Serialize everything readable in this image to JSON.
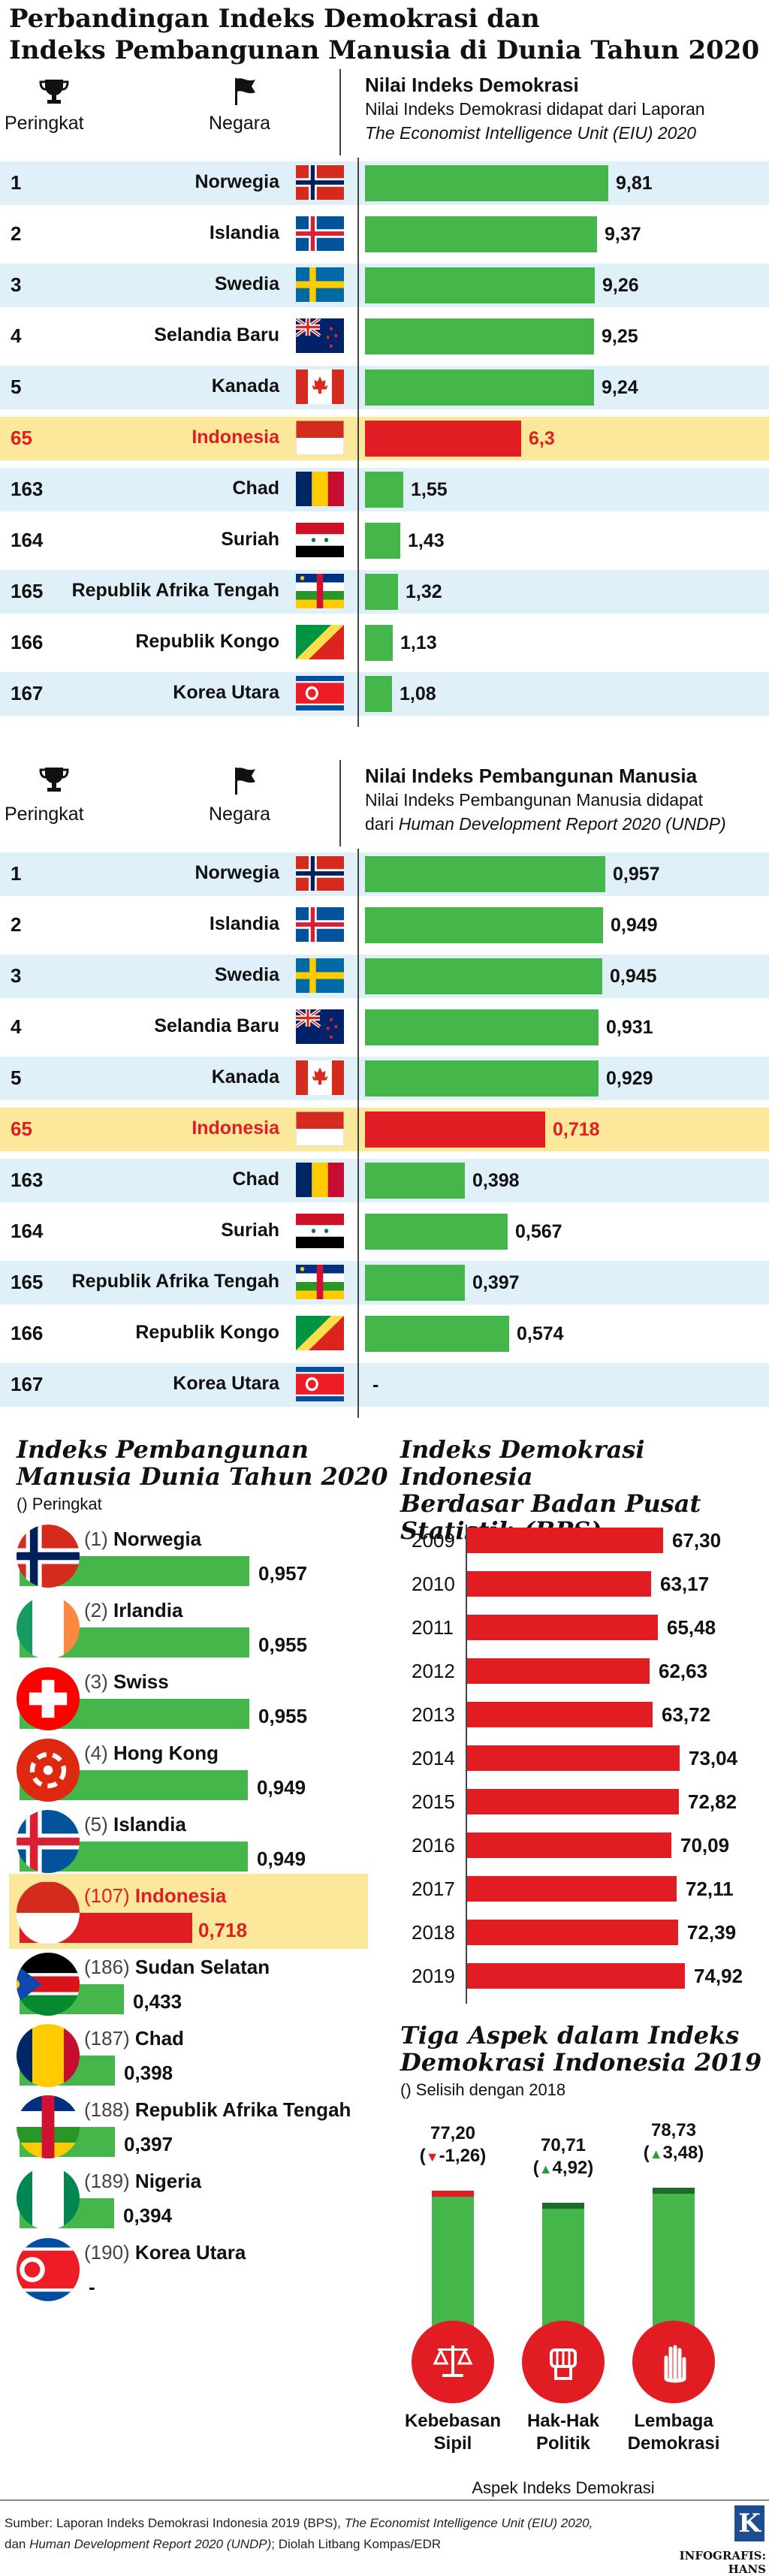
{
  "title_line1": "Perbandingan Indeks Demokrasi dan",
  "title_line2": "Indeks Pembangunan Manusia di Dunia Tahun 2020",
  "col_rank": "Peringkat",
  "col_country": "Negara",
  "democracy": {
    "header_title": "Nilai Indeks Demokrasi",
    "header_sub1": "Nilai Indeks Demokrasi didapat dari Laporan",
    "header_sub2": "The Economist Intelligence Unit (EIU) 2020",
    "rows": [
      {
        "rank": "1",
        "country": "Norwegia",
        "label": "9,81",
        "value": 9.81,
        "flag": "norway"
      },
      {
        "rank": "2",
        "country": "Islandia",
        "label": "9,37",
        "value": 9.37,
        "flag": "iceland"
      },
      {
        "rank": "3",
        "country": "Swedia",
        "label": "9,26",
        "value": 9.26,
        "flag": "sweden"
      },
      {
        "rank": "4",
        "country": "Selandia Baru",
        "label": "9,25",
        "value": 9.25,
        "flag": "newzealand"
      },
      {
        "rank": "5",
        "country": "Kanada",
        "label": "9,24",
        "value": 9.24,
        "flag": "canada"
      },
      {
        "rank": "65",
        "country": "Indonesia",
        "label": "6,3",
        "value": 6.3,
        "flag": "indonesia",
        "highlight": true
      },
      {
        "rank": "163",
        "country": "Chad",
        "label": "1,55",
        "value": 1.55,
        "flag": "chad"
      },
      {
        "rank": "164",
        "country": "Suriah",
        "label": "1,43",
        "value": 1.43,
        "flag": "syria"
      },
      {
        "rank": "165",
        "country": "Republik Afrika Tengah",
        "label": "1,32",
        "value": 1.32,
        "flag": "car"
      },
      {
        "rank": "166",
        "country": "Republik Kongo",
        "label": "1,13",
        "value": 1.13,
        "flag": "congo"
      },
      {
        "rank": "167",
        "country": "Korea Utara",
        "label": "1,08",
        "value": 1.08,
        "flag": "northkorea"
      }
    ]
  },
  "hdi": {
    "header_title": "Nilai Indeks Pembangunan Manusia",
    "header_sub1": "Nilai Indeks Pembangunan Manusia didapat",
    "header_sub2_prefix": "dari ",
    "header_sub2_italic": "Human Development Report 2020 (UNDP)",
    "rows": [
      {
        "rank": "1",
        "country": "Norwegia",
        "label": "0,957",
        "value": 0.957,
        "flag": "norway"
      },
      {
        "rank": "2",
        "country": "Islandia",
        "label": "0,949",
        "value": 0.949,
        "flag": "iceland"
      },
      {
        "rank": "3",
        "country": "Swedia",
        "label": "0,945",
        "value": 0.945,
        "flag": "sweden"
      },
      {
        "rank": "4",
        "country": "Selandia Baru",
        "label": "0,931",
        "value": 0.931,
        "flag": "newzealand"
      },
      {
        "rank": "5",
        "country": "Kanada",
        "label": "0,929",
        "value": 0.929,
        "flag": "canada"
      },
      {
        "rank": "65",
        "country": "Indonesia",
        "label": "0,718",
        "value": 0.718,
        "flag": "indonesia",
        "highlight": true
      },
      {
        "rank": "163",
        "country": "Chad",
        "label": "0,398",
        "value": 0.398,
        "flag": "chad"
      },
      {
        "rank": "164",
        "country": "Suriah",
        "label": "0,567",
        "value": 0.567,
        "flag": "syria"
      },
      {
        "rank": "165",
        "country": "Republik Afrika Tengah",
        "label": "0,397",
        "value": 0.397,
        "flag": "car"
      },
      {
        "rank": "166",
        "country": "Republik Kongo",
        "label": "0,574",
        "value": 0.574,
        "flag": "congo"
      },
      {
        "rank": "167",
        "country": "Korea Utara",
        "label": "-",
        "value": null,
        "flag": "northkorea"
      }
    ]
  },
  "hdi2020": {
    "title1": "Indeks Pembangunan",
    "title2": "Manusia Dunia Tahun 2020",
    "note": "() Peringkat",
    "rows": [
      {
        "rank": "(1)",
        "country": "Norwegia",
        "label": "0,957",
        "value": 0.957,
        "flag": "norway"
      },
      {
        "rank": "(2)",
        "country": "Irlandia",
        "label": "0,955",
        "value": 0.955,
        "flag": "ireland"
      },
      {
        "rank": "(3)",
        "country": "Swiss",
        "label": "0,955",
        "value": 0.955,
        "flag": "swiss"
      },
      {
        "rank": "(4)",
        "country": "Hong Kong",
        "label": "0,949",
        "value": 0.949,
        "flag": "hongkong"
      },
      {
        "rank": "(5)",
        "country": "Islandia",
        "label": "0,949",
        "value": 0.949,
        "flag": "iceland"
      },
      {
        "rank": "(107)",
        "country": "Indonesia",
        "label": "0,718",
        "value": 0.718,
        "flag": "indonesia",
        "highlight": true
      },
      {
        "rank": "(186)",
        "country": "Sudan Selatan",
        "label": "0,433",
        "value": 0.433,
        "flag": "southsudan"
      },
      {
        "rank": "(187)",
        "country": "Chad",
        "label": "0,398",
        "value": 0.398,
        "flag": "chad"
      },
      {
        "rank": "(188)",
        "country": "Republik Afrika Tengah",
        "label": "0,397",
        "value": 0.397,
        "flag": "car"
      },
      {
        "rank": "(189)",
        "country": "Nigeria",
        "label": "0,394",
        "value": 0.394,
        "flag": "nigeria"
      },
      {
        "rank": "(190)",
        "country": "Korea Utara",
        "label": "-",
        "value": null,
        "flag": "northkorea"
      }
    ]
  },
  "bps": {
    "title1": "Indeks Demokrasi Indonesia",
    "title2": "Berdasar Badan Pusat",
    "title3": "Statistik (BPS)",
    "rows": [
      {
        "year": "2009",
        "label": "67,30",
        "value": 67.3
      },
      {
        "year": "2010",
        "label": "63,17",
        "value": 63.17
      },
      {
        "year": "2011",
        "label": "65,48",
        "value": 65.48
      },
      {
        "year": "2012",
        "label": "62,63",
        "value": 62.63
      },
      {
        "year": "2013",
        "label": "63,72",
        "value": 63.72
      },
      {
        "year": "2014",
        "label": "73,04",
        "value": 73.04
      },
      {
        "year": "2015",
        "label": "72,82",
        "value": 72.82
      },
      {
        "year": "2016",
        "label": "70,09",
        "value": 70.09
      },
      {
        "year": "2017",
        "label": "72,11",
        "value": 72.11
      },
      {
        "year": "2018",
        "label": "72,39",
        "value": 72.39
      },
      {
        "year": "2019",
        "label": "74,92",
        "value": 74.92
      }
    ]
  },
  "aspects": {
    "title1": "Tiga Aspek dalam Indeks",
    "title2": "Demokrasi Indonesia 2019",
    "note": "() Selisih dengan 2018",
    "xlabel": "Aspek Indeks Demokrasi",
    "items": [
      {
        "value_label": "77,20",
        "change": "-1,26",
        "direction": "down",
        "value": 77.2,
        "name1": "Kebebasan",
        "name2": "Sipil",
        "icon": "scale-icon"
      },
      {
        "value_label": "70,71",
        "change": "4,92",
        "direction": "up",
        "value": 70.71,
        "name1": "Hak-Hak",
        "name2": "Politik",
        "icon": "fist-icon"
      },
      {
        "value_label": "78,73",
        "change": "3,48",
        "direction": "up",
        "value": 78.73,
        "name1": "Lembaga",
        "name2": "Demokrasi",
        "icon": "hand-icon"
      }
    ]
  },
  "source_line1_a": "Sumber: Laporan Indeks Demokrasi Indonesia 2019 (BPS), ",
  "source_line1_b": "The Economist Intelligence Unit (EIU) 2020,",
  "source_line2_a": "dan ",
  "source_line2_b": "Human Development Report 2020 (UNDP)",
  "source_line2_c": "; Diolah Litbang Kompas/EDR",
  "credit": "INFOGRAFIS: HANS",
  "logo_letter": "K",
  "colors": {
    "green": "#45b649",
    "red": "#e11d23",
    "blue_band": "#dff0f9",
    "yellow_band": "#fbe89a"
  },
  "chart_data": [
    {
      "type": "bar",
      "title": "Nilai Indeks Demokrasi",
      "categories": [
        "Norwegia",
        "Islandia",
        "Swedia",
        "Selandia Baru",
        "Kanada",
        "Indonesia",
        "Chad",
        "Suriah",
        "Republik Afrika Tengah",
        "Republik Kongo",
        "Korea Utara"
      ],
      "values": [
        9.81,
        9.37,
        9.26,
        9.25,
        9.24,
        6.3,
        1.55,
        1.43,
        1.32,
        1.13,
        1.08
      ]
    },
    {
      "type": "bar",
      "title": "Nilai Indeks Pembangunan Manusia",
      "categories": [
        "Norwegia",
        "Islandia",
        "Swedia",
        "Selandia Baru",
        "Kanada",
        "Indonesia",
        "Chad",
        "Suriah",
        "Republik Afrika Tengah",
        "Republik Kongo",
        "Korea Utara"
      ],
      "values": [
        0.957,
        0.949,
        0.945,
        0.931,
        0.929,
        0.718,
        0.398,
        0.567,
        0.397,
        0.574,
        null
      ]
    },
    {
      "type": "bar",
      "title": "Indeks Pembangunan Manusia Dunia Tahun 2020",
      "categories": [
        "Norwegia",
        "Irlandia",
        "Swiss",
        "Hong Kong",
        "Islandia",
        "Indonesia",
        "Sudan Selatan",
        "Chad",
        "Republik Afrika Tengah",
        "Nigeria",
        "Korea Utara"
      ],
      "values": [
        0.957,
        0.955,
        0.955,
        0.949,
        0.949,
        0.718,
        0.433,
        0.398,
        0.397,
        0.394,
        null
      ]
    },
    {
      "type": "bar",
      "title": "Indeks Demokrasi Indonesia Berdasar Badan Pusat Statistik (BPS)",
      "categories": [
        "2009",
        "2010",
        "2011",
        "2012",
        "2013",
        "2014",
        "2015",
        "2016",
        "2017",
        "2018",
        "2019"
      ],
      "values": [
        67.3,
        63.17,
        65.48,
        62.63,
        63.72,
        73.04,
        72.82,
        70.09,
        72.11,
        72.39,
        74.92
      ]
    },
    {
      "type": "bar",
      "title": "Tiga Aspek dalam Indeks Demokrasi Indonesia 2019",
      "xlabel": "Aspek Indeks Demokrasi",
      "categories": [
        "Kebebasan Sipil",
        "Hak-Hak Politik",
        "Lembaga Demokrasi"
      ],
      "values": [
        77.2,
        70.71,
        78.73
      ]
    }
  ]
}
